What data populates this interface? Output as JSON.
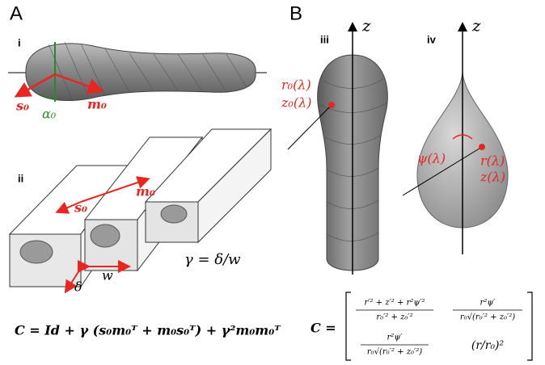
{
  "panel_a": {
    "label": "A",
    "sub_i": {
      "label": "i",
      "s0": "s₀",
      "m0": "m₀",
      "alpha0": "α₀"
    },
    "sub_ii": {
      "label": "ii",
      "m0": "m₀",
      "s0": "s₀",
      "w": "w",
      "delta": "δ",
      "gamma": "γ = δ/w"
    },
    "equation": "C = Id + γ (s₀m₀ᵀ + m₀s₀ᵀ) + γ²m₀m₀ᵀ"
  },
  "panel_b": {
    "label": "B",
    "sub_iii": {
      "label": "iii",
      "axis": "z",
      "r0": "r₀(λ)",
      "z0": "z₀(λ)"
    },
    "sub_iv": {
      "label": "iv",
      "axis": "z",
      "psi": "ψ(λ)",
      "r": "r(λ)",
      "z": "z(λ)"
    },
    "matrix": {
      "lhs": "C =",
      "m11": {
        "num": "r′² + z′² + r²ψ′²",
        "den": "r₀′² + z₀′²"
      },
      "m12": {
        "num": "r²ψ′",
        "den": "r₀√(r₀′² + z₀′²)"
      },
      "m21": {
        "num": "r²ψ′",
        "den": "r₀√(r₀′² + z₀′²)"
      },
      "m22": "(r/r₀)²"
    }
  }
}
